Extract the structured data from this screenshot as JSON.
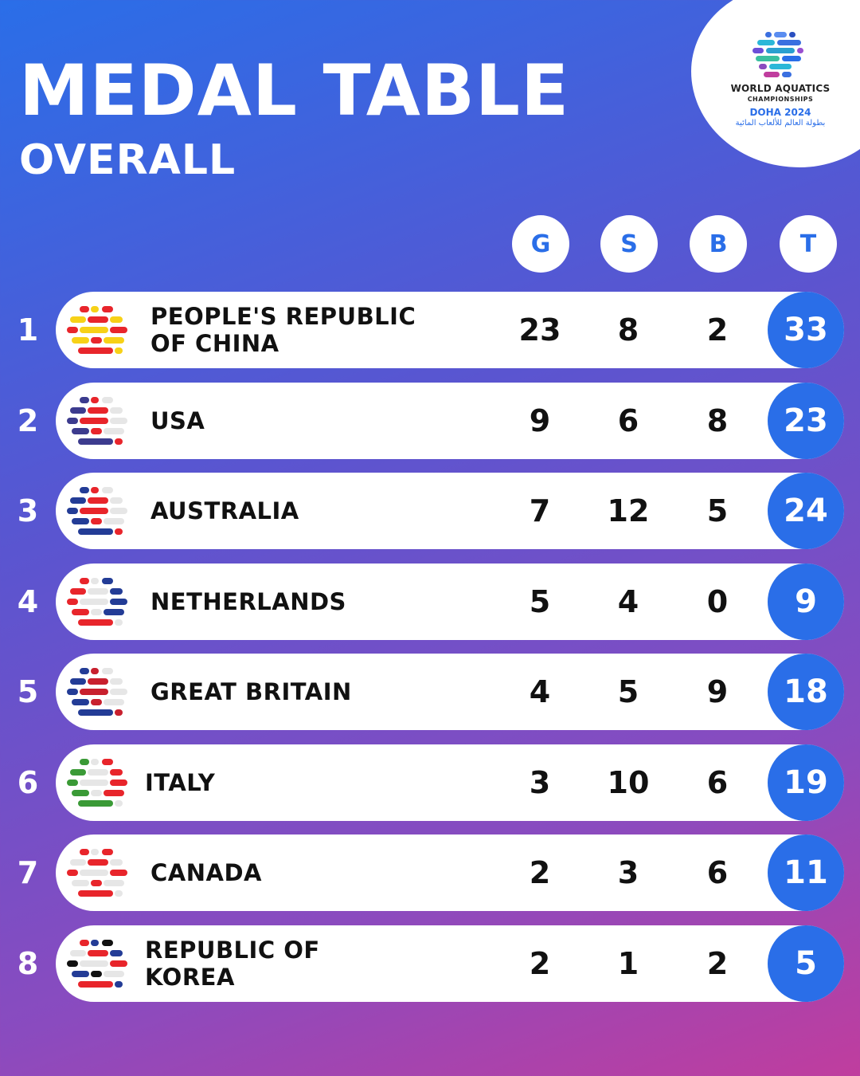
{
  "header": {
    "title": "MEDAL TABLE",
    "subtitle": "OVERALL"
  },
  "logo": {
    "line1": "WORLD AQUATICS",
    "line2": "CHAMPIONSHIPS",
    "line3": "DOHA 2024",
    "line4": "بطولة العالم للألعاب المائية"
  },
  "columns": [
    "G",
    "S",
    "B",
    "T"
  ],
  "rows": [
    {
      "rank": "1",
      "country_line1": "PEOPLE'S REPUBLIC",
      "country_line2": "OF CHINA",
      "g": "23",
      "s": "8",
      "b": "2",
      "t": "33",
      "flag_colors": [
        "#e8252b",
        "#f7d117"
      ]
    },
    {
      "rank": "2",
      "country_line1": "USA",
      "country_line2": "",
      "g": "9",
      "s": "6",
      "b": "8",
      "t": "23",
      "flag_colors": [
        "#3c3b8e",
        "#e8252b",
        "#e6e6e6"
      ]
    },
    {
      "rank": "3",
      "country_line1": "AUSTRALIA",
      "country_line2": "",
      "g": "7",
      "s": "12",
      "b": "5",
      "t": "24",
      "flag_colors": [
        "#233c96",
        "#e8252b",
        "#e6e6e6"
      ]
    },
    {
      "rank": "4",
      "country_line1": "NETHERLANDS",
      "country_line2": "",
      "g": "5",
      "s": "4",
      "b": "0",
      "t": "9",
      "flag_colors": [
        "#e8252b",
        "#e6e6e6",
        "#233c96"
      ]
    },
    {
      "rank": "5",
      "country_line1": "GREAT BRITAIN",
      "country_line2": "",
      "g": "4",
      "s": "5",
      "b": "9",
      "t": "18",
      "flag_colors": [
        "#233c96",
        "#c8202e",
        "#e6e6e6"
      ]
    },
    {
      "rank": "6",
      "country_line1": "ITALY",
      "country_line2": "",
      "g": "3",
      "s": "10",
      "b": "6",
      "t": "19",
      "flag_colors": [
        "#3a9a36",
        "#e6e6e6",
        "#e8252b"
      ]
    },
    {
      "rank": "7",
      "country_line1": "CANADA",
      "country_line2": "",
      "g": "2",
      "s": "3",
      "b": "6",
      "t": "11",
      "flag_colors": [
        "#e8252b",
        "#e6e6e6"
      ]
    },
    {
      "rank": "8",
      "country_line1": "REPUBLIC OF",
      "country_line2": "KOREA",
      "g": "2",
      "s": "1",
      "b": "2",
      "t": "5",
      "flag_colors": [
        "#e8252b",
        "#233c96",
        "#111111",
        "#e6e6e6"
      ]
    }
  ]
}
